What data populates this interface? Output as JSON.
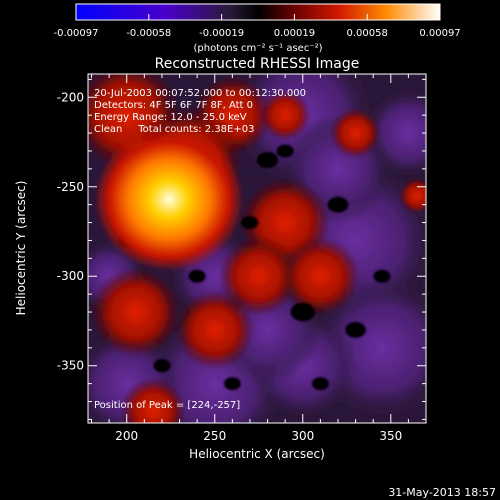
{
  "colorbar": {
    "ticks": [
      "-0.00097",
      "-0.00058",
      "-0.00019",
      "0.00019",
      "0.00058",
      "0.00097"
    ],
    "unit_label": "(photons cm⁻² s⁻¹ asec⁻²)",
    "range": [
      -0.00097,
      0.00097
    ],
    "colors": [
      "#0000ff",
      "#4a00c8",
      "#5a2a8a",
      "#2a1a3a",
      "#000000",
      "#5a0000",
      "#c81400",
      "#ff6a00",
      "#ffc800",
      "#ffffff"
    ]
  },
  "chart_data": {
    "type": "heatmap",
    "title": "Reconstructed RHESSI Image",
    "xlabel": "Heliocentric X (arcsec)",
    "ylabel": "Heliocentric Y (arcsec)",
    "xlim": [
      178,
      370
    ],
    "ylim": [
      -382,
      -187
    ],
    "xticks": [
      "200",
      "250",
      "300",
      "350"
    ],
    "yticks": [
      "-200",
      "-250",
      "-300",
      "-350"
    ],
    "xtick_values": [
      200,
      250,
      300,
      350
    ],
    "ytick_values": [
      -200,
      -250,
      -300,
      -350
    ],
    "annotations": [
      "20-Jul-2003 00:07:52.000 to 00:12:30.000",
      "Detectors: 4F 5F 6F 7F 8F, Att 0",
      "Energy Range: 12.0 - 25.0 keV",
      "Clean     Total counts: 2.38E+03"
    ],
    "peak_label": "Position of Peak = [224,-257]",
    "peak": [
      224,
      -257
    ]
  },
  "footer": {
    "timestamp": "31-May-2013 18:57"
  }
}
